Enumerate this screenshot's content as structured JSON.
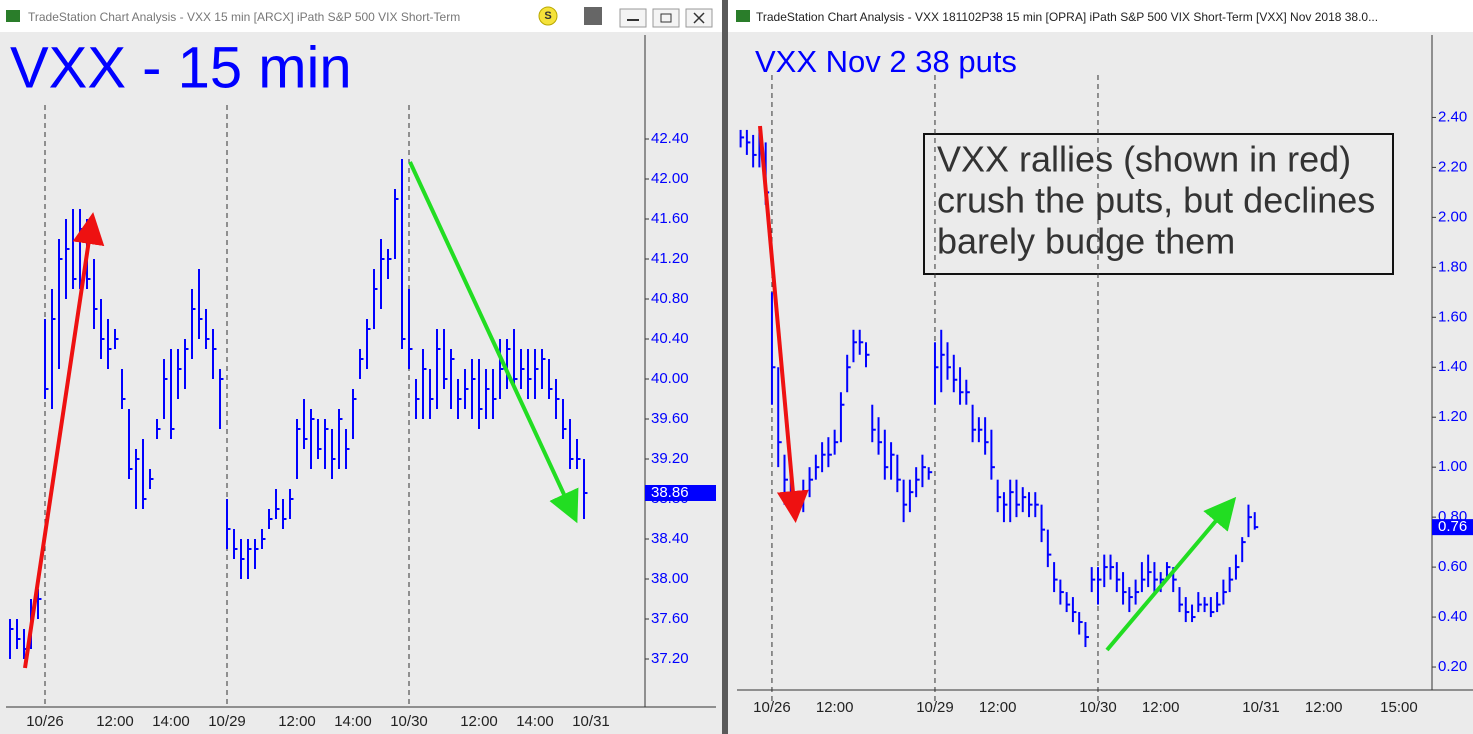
{
  "window_titles": [
    "TradeStation Chart Analysis - VXX 15 min [ARCX] iPath S&P 500 VIX Short-Term",
    "TradeStation Chart Analysis - VXX 181102P38 15 min [OPRA] iPath S&P 500 VIX Short-Term [VXX] Nov 2018 38.0..."
  ],
  "toolbar_button": "S",
  "chart_data": [
    {
      "type": "ohlc",
      "title": "VXX - 15 min",
      "color": "#0000ff",
      "categories": [
        null,
        null,
        null,
        null,
        null,
        "10/26",
        null,
        null,
        null,
        null,
        null,
        null,
        null,
        null,
        null,
        "12:00",
        null,
        null,
        null,
        null,
        null,
        null,
        null,
        "14:00",
        null,
        null,
        null,
        null,
        null,
        null,
        null,
        "10/29",
        null,
        null,
        null,
        null,
        null,
        null,
        null,
        null,
        null,
        "12:00",
        null,
        null,
        null,
        null,
        null,
        null,
        null,
        "14:00",
        null,
        null,
        null,
        null,
        null,
        null,
        null,
        "10/30",
        null,
        null,
        null,
        null,
        null,
        null,
        null,
        null,
        null,
        "12:00",
        null,
        null,
        null,
        null,
        null,
        null,
        null,
        "14:00",
        null,
        null,
        null,
        null,
        null,
        null,
        null,
        "10/31"
      ],
      "high": [
        37.6,
        37.6,
        37.5,
        37.8,
        37.9,
        40.6,
        40.9,
        41.4,
        41.6,
        41.7,
        41.7,
        41.6,
        41.2,
        40.8,
        40.6,
        40.5,
        40.1,
        39.7,
        39.3,
        39.4,
        39.1,
        39.6,
        40.2,
        40.3,
        40.3,
        40.4,
        40.9,
        41.1,
        40.7,
        40.5,
        40.1,
        38.8,
        38.5,
        38.4,
        38.4,
        38.4,
        38.5,
        38.7,
        38.9,
        38.8,
        38.9,
        39.6,
        39.8,
        39.7,
        39.6,
        39.6,
        39.5,
        39.7,
        39.5,
        39.9,
        40.3,
        40.6,
        41.1,
        41.4,
        41.3,
        41.9,
        42.2,
        40.9,
        40.0,
        40.3,
        40.1,
        40.5,
        40.5,
        40.3,
        40.0,
        40.1,
        40.2,
        40.2,
        40.1,
        40.1,
        40.4,
        40.4,
        40.5,
        40.3,
        40.3,
        40.3,
        40.3,
        40.2,
        40.0,
        39.8,
        39.6,
        39.4,
        39.2,
        null
      ],
      "low": [
        37.2,
        37.3,
        37.2,
        37.3,
        37.6,
        39.8,
        39.7,
        40.1,
        40.8,
        40.9,
        40.9,
        40.9,
        40.5,
        40.2,
        40.1,
        40.3,
        39.7,
        39.0,
        38.7,
        38.7,
        38.9,
        39.4,
        39.6,
        39.4,
        39.8,
        39.9,
        40.2,
        40.4,
        40.3,
        40.0,
        39.5,
        38.3,
        38.2,
        38.0,
        38.0,
        38.1,
        38.3,
        38.5,
        38.6,
        38.5,
        38.6,
        39.0,
        39.3,
        39.1,
        39.2,
        39.1,
        39.0,
        39.1,
        39.1,
        39.4,
        40.0,
        40.1,
        40.5,
        40.7,
        41.0,
        41.2,
        40.3,
        40.1,
        39.6,
        39.6,
        39.6,
        39.7,
        39.9,
        39.7,
        39.6,
        39.7,
        39.6,
        39.5,
        39.6,
        39.6,
        39.8,
        39.9,
        39.9,
        39.9,
        39.8,
        39.8,
        39.9,
        39.8,
        39.6,
        39.4,
        39.1,
        39.1,
        38.6,
        null
      ],
      "close": [
        37.5,
        37.4,
        37.3,
        37.7,
        37.8,
        39.9,
        40.6,
        41.2,
        41.3,
        41.0,
        41.5,
        41.0,
        40.7,
        40.4,
        40.3,
        40.4,
        39.8,
        39.1,
        39.2,
        38.8,
        39.0,
        39.5,
        40.0,
        39.5,
        40.1,
        40.3,
        40.7,
        40.6,
        40.4,
        40.3,
        40.0,
        38.5,
        38.3,
        38.2,
        38.3,
        38.3,
        38.4,
        38.6,
        38.7,
        38.6,
        38.8,
        39.5,
        39.4,
        39.6,
        39.3,
        39.5,
        39.2,
        39.6,
        39.3,
        39.8,
        40.2,
        40.5,
        40.9,
        41.2,
        41.2,
        41.8,
        40.4,
        40.3,
        39.8,
        40.1,
        39.8,
        40.3,
        40.0,
        40.2,
        39.8,
        39.9,
        40.0,
        39.7,
        39.9,
        39.8,
        40.1,
        40.3,
        40.0,
        40.1,
        40.0,
        40.1,
        40.2,
        39.9,
        39.8,
        39.5,
        39.2,
        39.2,
        38.86,
        null
      ],
      "last_value": 38.86,
      "ylim": [
        36.72,
        43.44
      ],
      "yticks": [
        {
          "value": 37.2,
          "label": "37.20"
        },
        {
          "value": 37.6,
          "label": "37.60"
        },
        {
          "value": 38.0,
          "label": "38.00"
        },
        {
          "value": 38.4,
          "label": "38.40"
        },
        {
          "value": 38.8,
          "label": "38.80"
        },
        {
          "value": 39.2,
          "label": "39.20"
        },
        {
          "value": 39.6,
          "label": "39.60"
        },
        {
          "value": 40.0,
          "label": "40.00"
        },
        {
          "value": 40.4,
          "label": "40.40"
        },
        {
          "value": 40.8,
          "label": "40.80"
        },
        {
          "value": 41.2,
          "label": "41.20"
        },
        {
          "value": 41.6,
          "label": "41.60"
        },
        {
          "value": 42.0,
          "label": "42.00"
        },
        {
          "value": 42.4,
          "label": "42.40"
        }
      ],
      "grid": false
    },
    {
      "type": "ohlc",
      "title": "VXX Nov 2 38 puts",
      "color": "#0000ff",
      "annotation": [
        "VXX rallies (shown in red)",
        "crush the puts, but declines",
        "barely budge them"
      ],
      "categories": [
        null,
        null,
        null,
        null,
        null,
        "10/26",
        null,
        null,
        null,
        null,
        null,
        null,
        null,
        null,
        null,
        "12:00",
        null,
        null,
        null,
        null,
        null,
        null,
        null,
        null,
        null,
        null,
        null,
        null,
        null,
        null,
        null,
        "10/29",
        null,
        null,
        null,
        null,
        null,
        null,
        null,
        null,
        null,
        "12:00",
        null,
        null,
        null,
        null,
        null,
        null,
        null,
        null,
        null,
        null,
        null,
        null,
        null,
        null,
        null,
        "10/30",
        null,
        null,
        null,
        null,
        null,
        null,
        null,
        null,
        null,
        "12:00",
        null,
        null,
        null,
        null,
        null,
        null,
        null,
        null,
        null,
        null,
        null,
        null,
        null,
        null,
        null,
        "10/31",
        null,
        null,
        null,
        null,
        null,
        null,
        null,
        null,
        null,
        "12:00",
        null,
        null,
        null,
        null,
        null,
        null,
        null,
        null,
        null,
        null,
        null,
        "15:00"
      ],
      "high": [
        2.35,
        2.35,
        2.33,
        2.35,
        2.3,
        1.7,
        1.4,
        1.05,
        1.0,
        0.9,
        0.95,
        1.0,
        1.05,
        1.1,
        1.12,
        1.15,
        1.3,
        1.45,
        1.55,
        1.55,
        1.5,
        1.25,
        1.2,
        1.15,
        1.1,
        1.05,
        0.95,
        0.95,
        1.0,
        1.05,
        1.0,
        1.5,
        1.55,
        1.5,
        1.45,
        1.4,
        1.35,
        1.25,
        1.2,
        1.2,
        1.15,
        0.95,
        0.9,
        0.95,
        0.95,
        0.92,
        0.9,
        0.9,
        0.85,
        0.75,
        0.62,
        0.55,
        0.5,
        0.48,
        0.42,
        0.38,
        0.6,
        0.6,
        0.65,
        0.65,
        0.62,
        0.58,
        0.52,
        0.55,
        0.62,
        0.65,
        0.62,
        0.58,
        0.62,
        0.6,
        0.52,
        0.48,
        0.45,
        0.5,
        0.48,
        0.48,
        0.5,
        0.55,
        0.6,
        0.65,
        0.72,
        0.85,
        0.82,
        null,
        null,
        null,
        null,
        null,
        null,
        null,
        null,
        null,
        null,
        null,
        null,
        null,
        null,
        null,
        null,
        null,
        null,
        null,
        null,
        null,
        null,
        null
      ],
      "low": [
        2.28,
        2.25,
        2.2,
        2.2,
        2.05,
        1.25,
        1.0,
        0.85,
        0.85,
        0.8,
        0.82,
        0.88,
        0.95,
        0.98,
        1.0,
        1.05,
        1.1,
        1.3,
        1.42,
        1.45,
        1.4,
        1.1,
        1.05,
        0.95,
        0.95,
        0.9,
        0.78,
        0.82,
        0.88,
        0.92,
        0.95,
        1.25,
        1.3,
        1.35,
        1.3,
        1.25,
        1.25,
        1.1,
        1.1,
        1.05,
        0.95,
        0.82,
        0.78,
        0.78,
        0.8,
        0.82,
        0.8,
        0.8,
        0.7,
        0.6,
        0.5,
        0.45,
        0.42,
        0.38,
        0.33,
        0.28,
        0.5,
        0.45,
        0.52,
        0.55,
        0.5,
        0.45,
        0.42,
        0.45,
        0.5,
        0.52,
        0.5,
        0.5,
        0.55,
        0.5,
        0.42,
        0.38,
        0.38,
        0.42,
        0.42,
        0.4,
        0.42,
        0.45,
        0.5,
        0.55,
        0.62,
        0.72,
        0.75,
        null,
        null,
        null,
        null,
        null,
        null,
        null,
        null,
        null,
        null,
        null,
        null,
        null,
        null,
        null,
        null,
        null,
        null,
        null,
        null,
        null,
        null,
        null
      ],
      "close": [
        2.32,
        2.3,
        2.25,
        2.3,
        2.1,
        1.4,
        1.1,
        0.95,
        0.9,
        0.85,
        0.9,
        0.95,
        1.0,
        1.05,
        1.05,
        1.1,
        1.25,
        1.4,
        1.5,
        1.5,
        1.45,
        1.15,
        1.1,
        1.0,
        1.05,
        0.95,
        0.85,
        0.9,
        0.95,
        1.0,
        0.98,
        1.4,
        1.45,
        1.4,
        1.35,
        1.3,
        1.3,
        1.15,
        1.15,
        1.1,
        1.0,
        0.88,
        0.85,
        0.9,
        0.85,
        0.88,
        0.85,
        0.85,
        0.75,
        0.65,
        0.55,
        0.5,
        0.45,
        0.42,
        0.38,
        0.32,
        0.55,
        0.55,
        0.6,
        0.6,
        0.55,
        0.5,
        0.48,
        0.5,
        0.55,
        0.58,
        0.55,
        0.55,
        0.6,
        0.55,
        0.45,
        0.42,
        0.4,
        0.45,
        0.45,
        0.42,
        0.45,
        0.5,
        0.55,
        0.6,
        0.7,
        0.8,
        0.76,
        null,
        null,
        null,
        null,
        null,
        null,
        null,
        null,
        null,
        null,
        null,
        null,
        null,
        null,
        null,
        null,
        null,
        null,
        null,
        null,
        null,
        null,
        null
      ],
      "last_value": 0.76,
      "ylim": [
        0.04,
        2.73
      ],
      "yticks": [
        {
          "value": 0.2,
          "label": "0.20"
        },
        {
          "value": 0.4,
          "label": "0.40"
        },
        {
          "value": 0.6,
          "label": "0.60"
        },
        {
          "value": 0.8,
          "label": "0.80"
        },
        {
          "value": 1.0,
          "label": "1.00"
        },
        {
          "value": 1.2,
          "label": "1.20"
        },
        {
          "value": 1.4,
          "label": "1.40"
        },
        {
          "value": 1.6,
          "label": "1.60"
        },
        {
          "value": 1.8,
          "label": "1.80"
        },
        {
          "value": 2.0,
          "label": "2.00"
        },
        {
          "value": 2.2,
          "label": "2.20"
        },
        {
          "value": 2.4,
          "label": "2.40"
        }
      ],
      "grid": false
    }
  ]
}
